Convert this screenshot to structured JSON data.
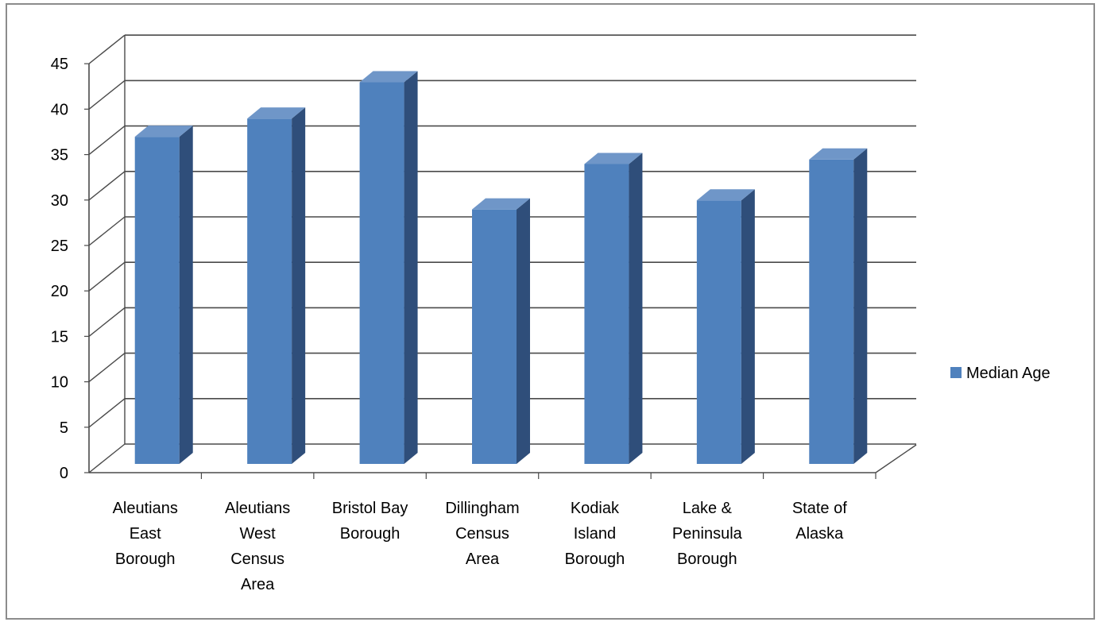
{
  "chart_data": {
    "type": "bar",
    "style": "3d-column",
    "categories": [
      [
        "Aleutians",
        "East",
        "Borough"
      ],
      [
        "Aleutians",
        "West",
        "Census",
        "Area"
      ],
      [
        "Bristol Bay",
        "Borough"
      ],
      [
        "Dillingham",
        "Census",
        "Area"
      ],
      [
        "Kodiak",
        "Island",
        "Borough"
      ],
      [
        "Lake &",
        "Peninsula",
        "Borough"
      ],
      [
        "State of",
        "Alaska"
      ]
    ],
    "series": [
      {
        "name": "Median Age",
        "values": [
          36,
          38,
          42,
          28,
          33,
          29,
          33.5
        ]
      }
    ],
    "yticks": [
      "0",
      "5",
      "10",
      "15",
      "20",
      "25",
      "30",
      "35",
      "40",
      "45"
    ],
    "ylim": [
      0,
      45
    ],
    "grid": true,
    "legend": "right",
    "colors": {
      "bar_front": "#4F81BD",
      "bar_side": "#2F4E7A",
      "bar_top": "#6F96C8",
      "grid": "#4a4a4a"
    }
  }
}
